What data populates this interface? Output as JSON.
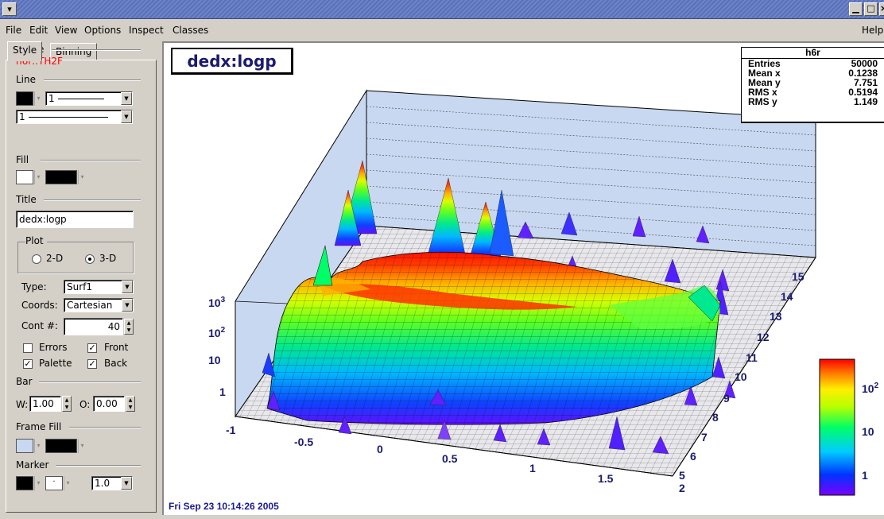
{
  "window": {
    "minimize_glyph": "▁",
    "maximize_glyph": "□",
    "close_glyph": "×",
    "sysmenu_glyph": "▾"
  },
  "menu": {
    "items": [
      {
        "label": "File",
        "underline": "F"
      },
      {
        "label": "Edit",
        "underline": "E"
      },
      {
        "label": "View",
        "underline": "V"
      },
      {
        "label": "Options",
        "underline": "O"
      },
      {
        "label": "Inspect",
        "underline": "I"
      },
      {
        "label": "Classes",
        "underline": "C"
      }
    ],
    "help": "Help"
  },
  "editor": {
    "tabs": [
      "Style",
      "Binning"
    ],
    "name_label": "Name",
    "object_name": "h6r::TH2F",
    "object_name_color": "#ff0000",
    "line_label": "Line",
    "line_width": "1",
    "line_style": "1",
    "fill_label": "Fill",
    "title_label": "Title",
    "title_value": "dedx:logp",
    "plot_label": "Plot",
    "plot_2d": "2-D",
    "plot_3d": "3-D",
    "type_label": "Type:",
    "type_value": "Surf1",
    "coords_label": "Coords:",
    "coords_value": "Cartesian",
    "cont_label": "Cont #:",
    "cont_value": "40",
    "errors": "Errors",
    "front": "Front",
    "palette": "Palette",
    "back": "Back",
    "bar_label": "Bar",
    "bar_w_label": "W:",
    "bar_w_value": "1.00",
    "bar_o_label": "O:",
    "bar_o_value": "0.00",
    "frame_fill_label": "Frame Fill",
    "marker_label": "Marker",
    "marker_size": "1.0",
    "marker_style_glyph": "·",
    "frame_fill_color": "#c8d8f0"
  },
  "pad": {
    "title": "dedx:logp",
    "date": "Fri Sep 23 10:14:26 2005"
  },
  "stats": {
    "name": "h6r",
    "rows": [
      {
        "k": "Entries",
        "v": "50000"
      },
      {
        "k": "Mean x",
        "v": "0.1238"
      },
      {
        "k": "Mean y",
        "v": "7.751"
      },
      {
        "k": "RMS x",
        "v": "0.5194"
      },
      {
        "k": "RMS y",
        "v": "1.149"
      }
    ]
  },
  "chart_data": {
    "type": "heatmap",
    "title": "dedx:logp",
    "x_ticks": [
      "-1",
      "-0.5",
      "0",
      "0.5",
      "1",
      "1.5",
      "2"
    ],
    "y_ticks": [
      "5",
      "6",
      "7",
      "8",
      "9",
      "10",
      "11",
      "12",
      "13",
      "14",
      "15"
    ],
    "z_ticks": [
      "1",
      "10",
      "10²",
      "10³"
    ],
    "xlim": [
      -1,
      2
    ],
    "ylim": [
      5,
      15
    ],
    "z_scale": "log",
    "palette_ticks": [
      "1",
      "10",
      "10²"
    ],
    "palette_colors": [
      "#7a00ff",
      "#0033ff",
      "#00ccff",
      "#00ff66",
      "#b8ff00",
      "#ffee00",
      "#ff7700",
      "#ff0000"
    ],
    "label_color": "#1a1a6e"
  }
}
